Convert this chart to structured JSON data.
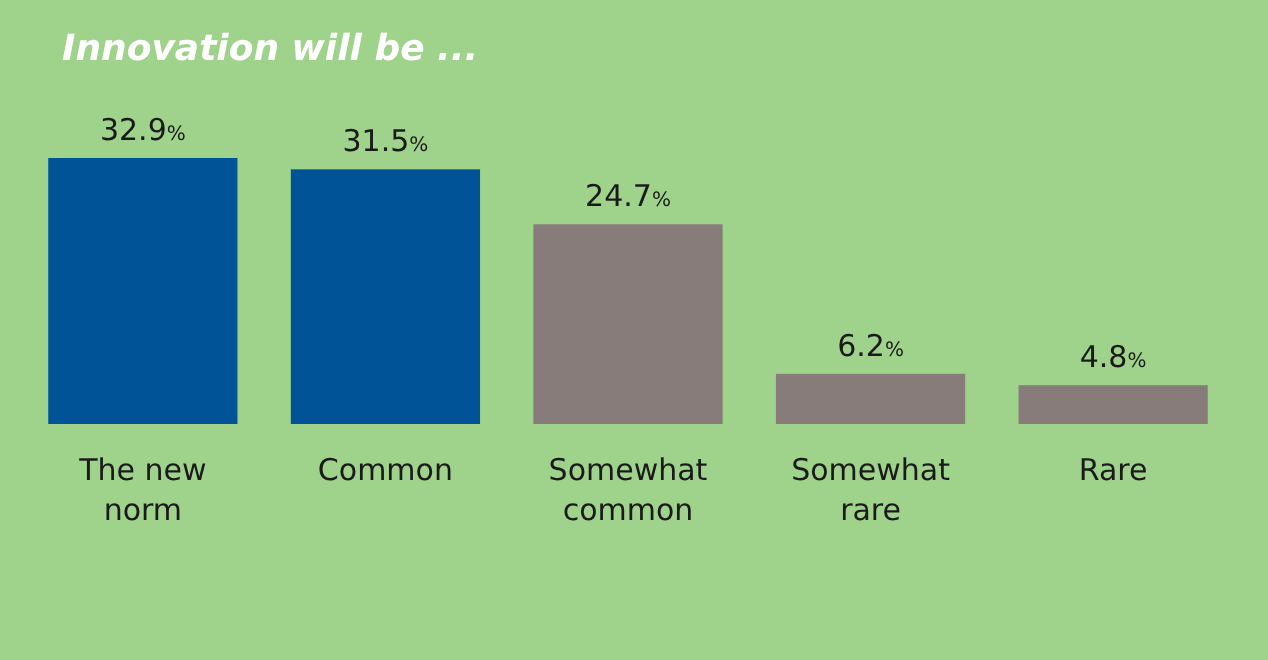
{
  "chart_data": {
    "type": "bar",
    "title": "Innovation will be ...",
    "categories": [
      "The new norm",
      "Common",
      "Somewhat common",
      "Somewhat rare",
      "Rare"
    ],
    "values": [
      32.9,
      31.5,
      24.7,
      6.2,
      4.8
    ],
    "colors": [
      "#005396",
      "#005396",
      "#877c7a",
      "#877c7a",
      "#877c7a"
    ],
    "value_labels": [
      "32.9%",
      "31.5%",
      "24.7%",
      "6.2%",
      "4.8%"
    ]
  }
}
